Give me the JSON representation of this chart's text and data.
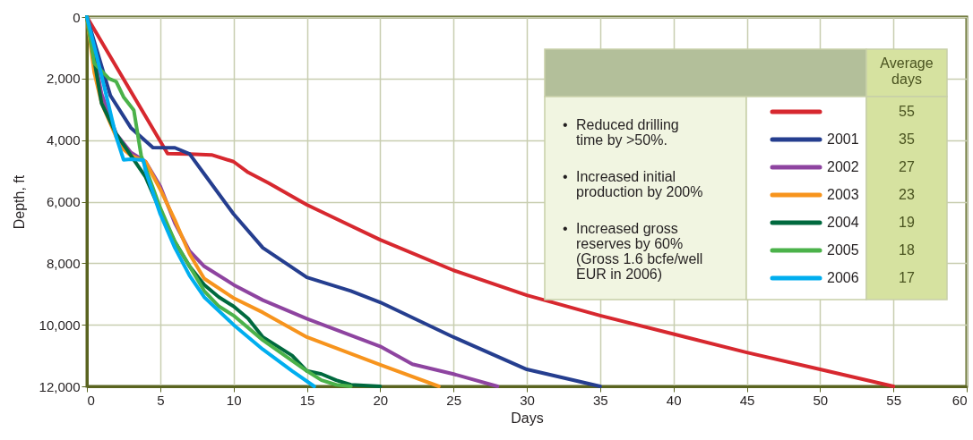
{
  "chart_data": {
    "type": "line",
    "xlabel": "Days",
    "ylabel": "Depth, ft",
    "xlim": [
      0,
      60
    ],
    "xticks": [
      0,
      5,
      10,
      15,
      20,
      25,
      30,
      35,
      40,
      45,
      50,
      55,
      60
    ],
    "ylim": [
      12000,
      0
    ],
    "yticks": [
      0,
      {
        "value": 2000,
        "label": "2,000"
      },
      {
        "value": 4000,
        "label": "4,000"
      },
      {
        "value": 6000,
        "label": "6,000"
      },
      {
        "value": 8000,
        "label": "8,000"
      },
      {
        "value": 10000,
        "label": "10,000"
      },
      {
        "value": 12000,
        "label": "12,000"
      }
    ],
    "grid": true,
    "legend": "top right",
    "line_style": "solid",
    "marker": "none",
    "annotations": [
      "• Reduced drilling\ntime by >50%.",
      "• Increased initial\nproduction by 200%",
      "• Increased gross\nreserves by 60%\n(Gross 1.6 bcfe/well\nEUR in 2006)",
      "Average\ndays",
      "55",
      "35",
      "27",
      "23",
      "19",
      "18",
      "17"
    ],
    "series": [
      {
        "name": null,
        "color": "#d7282f",
        "x": [
          0,
          5.5,
          7,
          8.5,
          10,
          11,
          12.4,
          15,
          20,
          25,
          30,
          35,
          40,
          45,
          50,
          55
        ],
        "values": [
          0,
          4440,
          4450,
          4480,
          4700,
          5050,
          5400,
          6100,
          7240,
          8230,
          9040,
          9700,
          10300,
          10900,
          11450,
          12000
        ]
      },
      {
        "name": "2001",
        "color": "#253e8f",
        "x": [
          0,
          1.6,
          3,
          4.5,
          6,
          7,
          8,
          10,
          12,
          15,
          18,
          20,
          25,
          30,
          35
        ],
        "values": [
          0,
          2550,
          3600,
          4240,
          4250,
          4450,
          5100,
          6400,
          7500,
          8460,
          8900,
          9270,
          10400,
          11450,
          12000
        ]
      },
      {
        "name": "2002",
        "color": "#8e44a0",
        "x": [
          0,
          1,
          2,
          3,
          4,
          5,
          6,
          7,
          8,
          10,
          12,
          15,
          20,
          22.2,
          25,
          28
        ],
        "values": [
          0,
          2500,
          3800,
          4400,
          4700,
          5500,
          6700,
          7600,
          8100,
          8700,
          9200,
          9800,
          10700,
          11280,
          11600,
          12000
        ]
      },
      {
        "name": "2003",
        "color": "#f7941d",
        "x": [
          0,
          0.5,
          1,
          2,
          2.5,
          3,
          4,
          5,
          6,
          7,
          8,
          10,
          12,
          15,
          20,
          24
        ],
        "values": [
          0,
          1800,
          2800,
          3900,
          4300,
          4500,
          4700,
          5600,
          6600,
          7700,
          8500,
          9130,
          9600,
          10400,
          11300,
          12000
        ]
      },
      {
        "name": "2004",
        "color": "#00693e",
        "x": [
          0,
          1,
          2,
          3,
          4,
          5,
          6,
          7,
          8,
          9,
          10,
          11,
          12,
          14,
          15,
          16,
          17,
          18,
          20
        ],
        "values": [
          0,
          2800,
          3800,
          4500,
          5200,
          6300,
          7300,
          8100,
          8700,
          9100,
          9400,
          9800,
          10400,
          11000,
          11500,
          11600,
          11800,
          11950,
          12000
        ]
      },
      {
        "name": "2005",
        "color": "#4bb24a",
        "x": [
          0,
          0.5,
          1.5,
          2,
          2.5,
          3.2,
          3.7,
          5,
          6,
          7,
          8,
          9,
          10,
          12,
          15,
          16,
          17,
          18
        ],
        "values": [
          0,
          1500,
          2000,
          2100,
          2600,
          3030,
          4500,
          6200,
          7300,
          8100,
          8900,
          9400,
          9700,
          10500,
          11500,
          11800,
          11950,
          12000
        ]
      },
      {
        "name": "2006",
        "color": "#00aeef",
        "x": [
          0,
          1,
          2,
          2.5,
          3,
          3.85,
          4,
          5,
          6,
          7,
          8,
          10,
          12,
          14,
          15.5
        ],
        "values": [
          0,
          1900,
          3900,
          4640,
          4620,
          4650,
          5000,
          6400,
          7500,
          8400,
          9100,
          10000,
          10800,
          11500,
          12000
        ]
      }
    ]
  }
}
